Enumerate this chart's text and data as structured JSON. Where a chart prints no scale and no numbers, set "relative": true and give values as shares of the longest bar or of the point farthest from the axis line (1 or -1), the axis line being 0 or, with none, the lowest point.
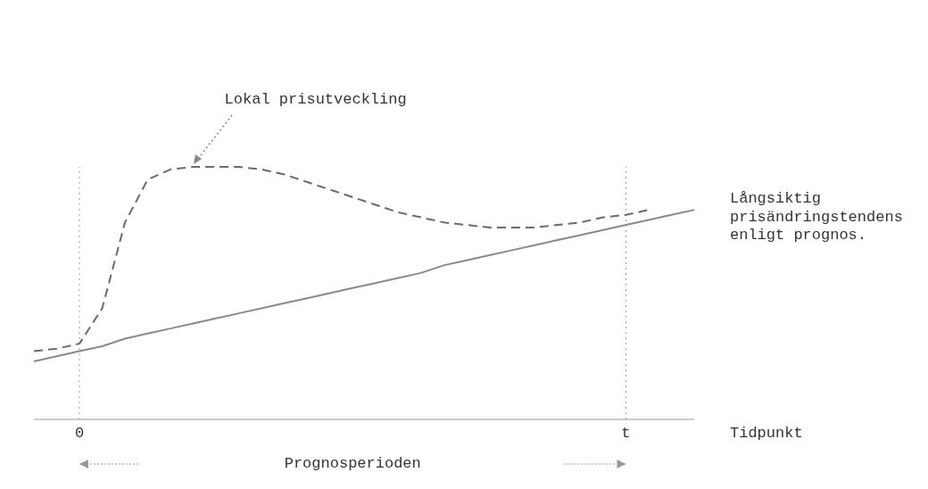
{
  "chart_data": {
    "type": "line",
    "relative": true,
    "xlabel": "Tidpunkt",
    "categories": [
      null,
      null,
      "0",
      null,
      null,
      null,
      null,
      null,
      null,
      null,
      null,
      null,
      null,
      null,
      null,
      null,
      null,
      null,
      null,
      null,
      null,
      null,
      null,
      null,
      null,
      null,
      "t",
      null,
      null,
      null
    ],
    "series": [
      {
        "name": "Lokal prisutveckling",
        "color": "#6a6a6a",
        "line_style": "dashed",
        "values": [
          0.27,
          0.28,
          0.3,
          0.44,
          0.78,
          0.95,
          0.99,
          1,
          1,
          1,
          0.99,
          0.97,
          0.94,
          0.91,
          0.88,
          0.85,
          0.82,
          0.8,
          0.78,
          0.77,
          0.76,
          0.76,
          0.76,
          0.77,
          0.78,
          0.8,
          0.81,
          0.83,
          null,
          null
        ]
      },
      {
        "name": "Långsiktig prisändringstendens enligt prognos.",
        "color": "#8a8a8a",
        "line_style": "solid",
        "values": [
          0.23,
          0.25,
          0.27,
          0.29,
          0.32,
          0.34,
          0.36,
          0.38,
          0.4,
          0.42,
          0.44,
          0.46,
          0.48,
          0.5,
          0.52,
          0.54,
          0.56,
          0.58,
          0.61,
          0.63,
          0.65,
          0.67,
          0.69,
          0.71,
          0.73,
          0.75,
          0.77,
          0.79,
          0.81,
          0.83
        ]
      }
    ],
    "ref_lines": [
      {
        "axis": "x",
        "value": "0",
        "line_style": "dotted",
        "color": "#9a9a9a"
      },
      {
        "axis": "x",
        "value": "t",
        "line_style": "dotted",
        "color": "#9a9a9a"
      }
    ],
    "annotations": [
      "Prognosperioden"
    ],
    "marker": "none",
    "grid": false,
    "legend": false
  }
}
